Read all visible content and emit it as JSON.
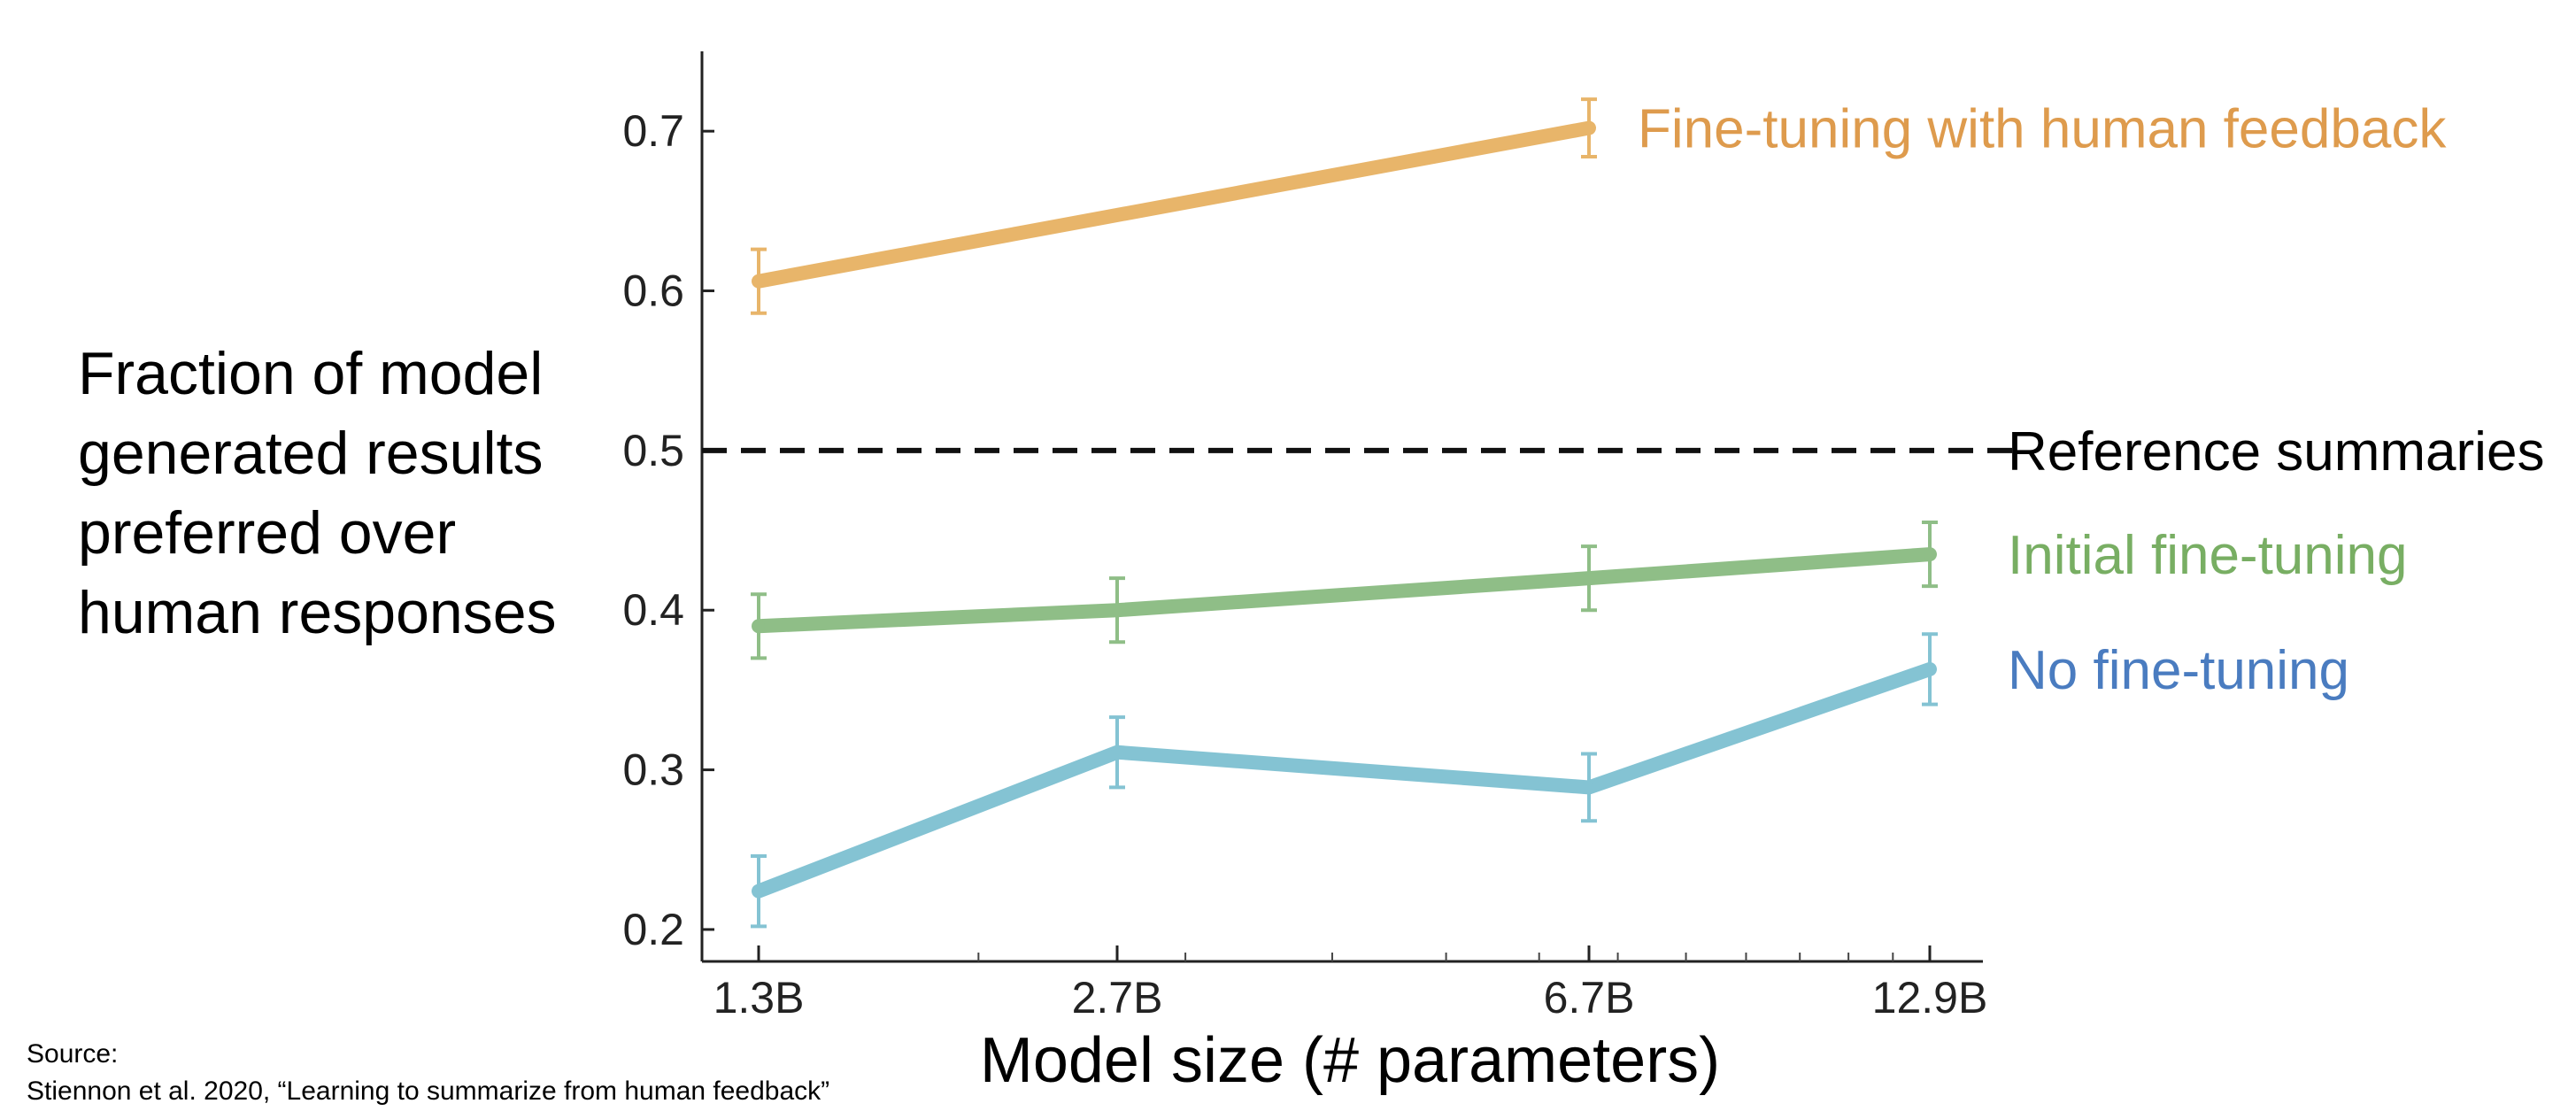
{
  "chart_data": {
    "type": "line",
    "categories": [
      "1.3B",
      "2.7B",
      "6.7B",
      "12.9B"
    ],
    "x_scale": "log",
    "x": [
      1.3,
      2.7,
      6.7,
      12.9
    ],
    "ylim": [
      0.18,
      0.75
    ],
    "yticks": [
      0.2,
      0.3,
      0.4,
      0.5,
      0.6,
      0.7
    ],
    "ytick_labels": [
      "0.2",
      "0.3",
      "0.4",
      "0.5",
      "0.6",
      "0.7"
    ],
    "ylabel_lines": [
      "Fraction of model",
      "generated results",
      "preferred over",
      "human responses"
    ],
    "xlabel": "Model size (# parameters)",
    "grid": false,
    "series": [
      {
        "name": "Fine-tuning with human feedback",
        "color": "#E8B56A",
        "label_color": "#DE9B4D",
        "values": [
          0.606,
          null,
          0.702,
          null
        ],
        "err": [
          0.02,
          null,
          0.018,
          null
        ]
      },
      {
        "name": "Initial fine-tuning",
        "color": "#8FBE87",
        "label_color": "#78AE63",
        "values": [
          0.39,
          0.4,
          0.42,
          0.435
        ],
        "err": [
          0.02,
          0.02,
          0.02,
          0.02
        ]
      },
      {
        "name": "No fine-tuning",
        "color": "#84C3D3",
        "label_color": "#4A7CC0",
        "values": [
          0.224,
          0.311,
          0.289,
          0.363
        ],
        "err": [
          0.022,
          0.022,
          0.021,
          0.022
        ]
      }
    ],
    "reference_line": {
      "name": "Reference summaries",
      "value": 0.5,
      "color": "#111111"
    }
  },
  "source": {
    "line1": "Source:",
    "line2": "Stiennon et al. 2020, “Learning to summarize from human feedback”"
  }
}
